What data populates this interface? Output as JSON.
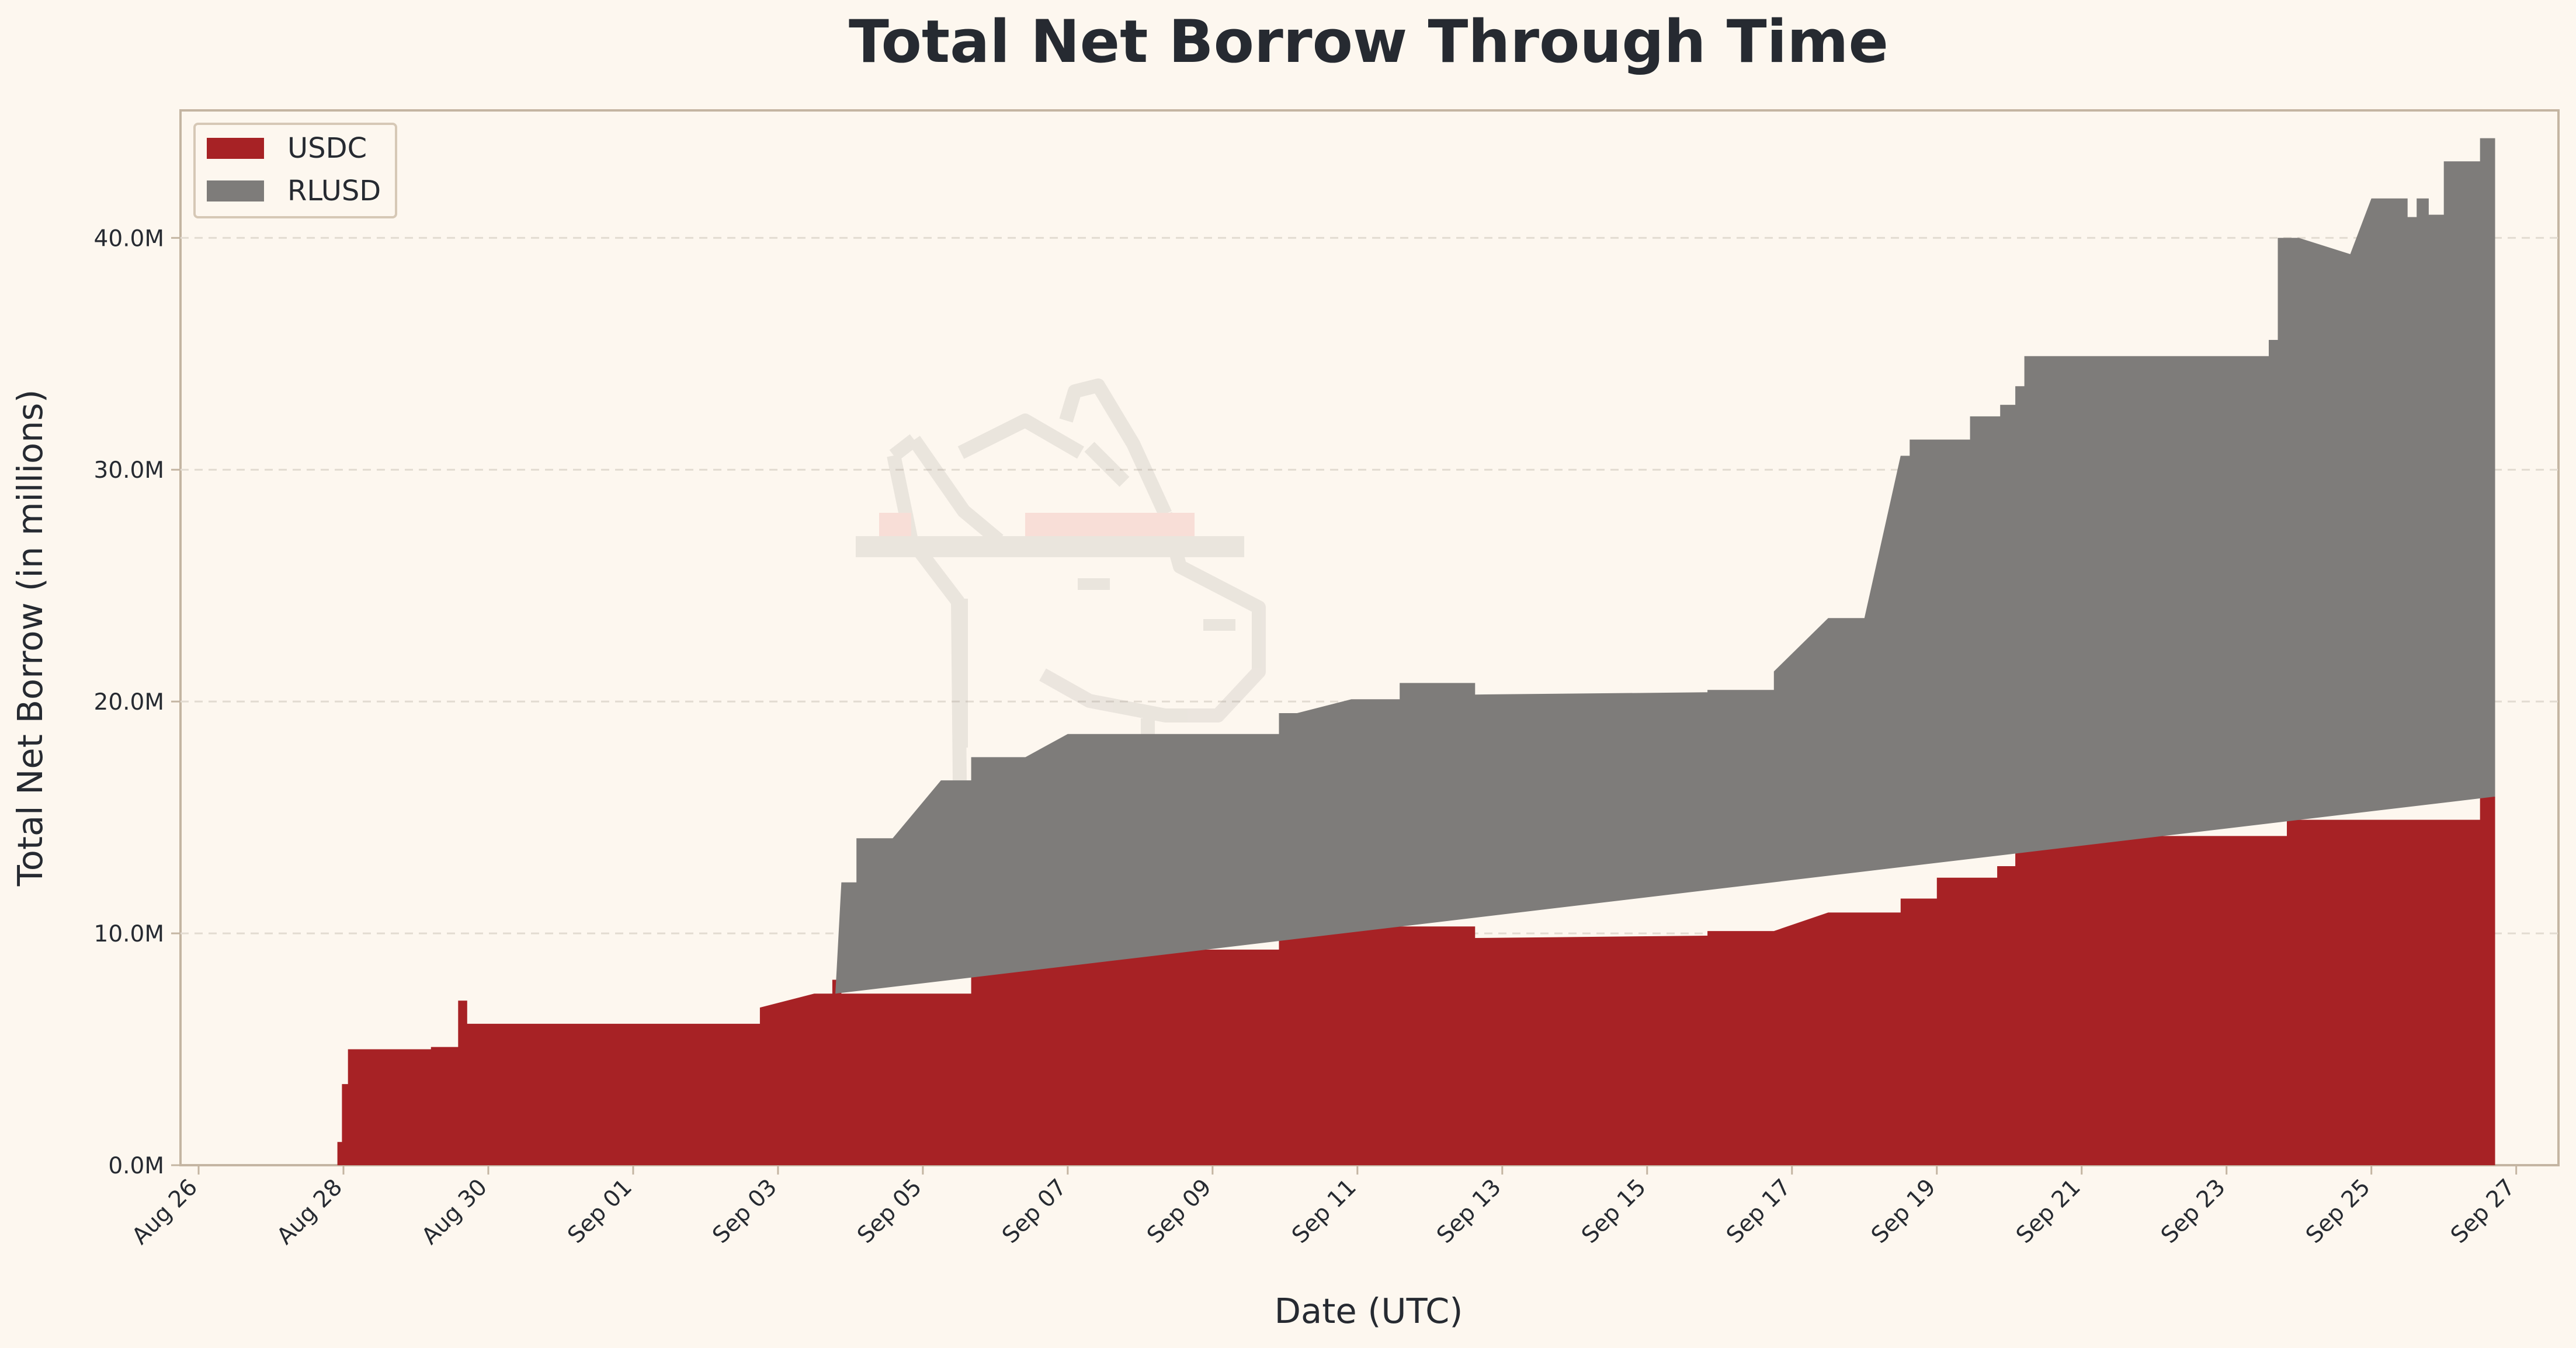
{
  "chart_data": {
    "type": "area",
    "stacked": true,
    "title": "Total Net Borrow Through Time",
    "xlabel": "Date (UTC)",
    "ylabel": "Total Net Borrow (in millions)",
    "ylim": [
      0,
      45.5
    ],
    "yticks": [
      0,
      10,
      20,
      30,
      40
    ],
    "ytick_labels": [
      "0.0M",
      "10.0M",
      "20.0M",
      "30.0M",
      "40.0M"
    ],
    "xlim": [
      "2025-08-25 18:00",
      "2025-09-27 14:00"
    ],
    "xticks": [
      "2025-08-26",
      "2025-08-28",
      "2025-08-30",
      "2025-09-01",
      "2025-09-03",
      "2025-09-05",
      "2025-09-07",
      "2025-09-09",
      "2025-09-11",
      "2025-09-13",
      "2025-09-15",
      "2025-09-17",
      "2025-09-19",
      "2025-09-21",
      "2025-09-23",
      "2025-09-25",
      "2025-09-27"
    ],
    "xtick_labels": [
      "Aug 26",
      "Aug 28",
      "Aug 30",
      "Sep 01",
      "Sep 03",
      "Sep 05",
      "Sep 07",
      "Sep 09",
      "Sep 11",
      "Sep 13",
      "Sep 15",
      "Sep 17",
      "Sep 19",
      "Sep 21",
      "Sep 23",
      "Sep 25",
      "Sep 27"
    ],
    "grid": "horizontal dashed",
    "legend_position": "top-left",
    "colors": {
      "USDC": "#a72225",
      "RLUSD": "#7e7c7a",
      "background": "#fdf7ef",
      "frame": "#c4b5a2",
      "text": "#262a31"
    },
    "series": [
      {
        "name": "USDC",
        "points": [
          [
            "2025-08-27 22:00",
            0
          ],
          [
            "2025-08-27 22:00",
            1.0
          ],
          [
            "2025-08-27 23:30",
            1.0
          ],
          [
            "2025-08-27 23:30",
            3.5
          ],
          [
            "2025-08-28 01:30",
            3.5
          ],
          [
            "2025-08-28 01:30",
            5.0
          ],
          [
            "2025-08-29 05:00",
            5.0
          ],
          [
            "2025-08-29 05:00",
            5.1
          ],
          [
            "2025-08-29 14:00",
            5.1
          ],
          [
            "2025-08-29 14:00",
            7.1
          ],
          [
            "2025-08-29 17:00",
            7.1
          ],
          [
            "2025-08-29 17:00",
            6.1
          ],
          [
            "2025-09-02 18:00",
            6.1
          ],
          [
            "2025-09-02 18:00",
            6.8
          ],
          [
            "2025-09-03 12:00",
            7.4
          ],
          [
            "2025-09-03 18:00",
            7.4
          ],
          [
            "2025-09-03 18:00",
            8.0
          ],
          [
            "2025-09-03 21:00",
            8.0
          ],
          [
            "2025-09-03 21:00",
            7.4
          ],
          [
            "2025-09-05 16:00",
            7.4
          ],
          [
            "2025-09-05 16:00",
            8.4
          ],
          [
            "2025-09-06 10:00",
            8.4
          ],
          [
            "2025-09-07 00:00",
            9.3
          ],
          [
            "2025-09-09 22:00",
            9.3
          ],
          [
            "2025-09-09 22:00",
            10.3
          ],
          [
            "2025-09-12 15:00",
            10.3
          ],
          [
            "2025-09-12 15:00",
            9.8
          ],
          [
            "2025-09-15 20:00",
            9.9
          ],
          [
            "2025-09-15 20:00",
            10.1
          ],
          [
            "2025-09-16 18:00",
            10.1
          ],
          [
            "2025-09-17 12:00",
            10.9
          ],
          [
            "2025-09-18 12:00",
            10.9
          ],
          [
            "2025-09-18 12:00",
            11.5
          ],
          [
            "2025-09-19 00:00",
            11.5
          ],
          [
            "2025-09-19 00:00",
            12.4
          ],
          [
            "2025-09-19 20:00",
            12.4
          ],
          [
            "2025-09-19 20:00",
            12.9
          ],
          [
            "2025-09-20 02:00",
            12.9
          ],
          [
            "2025-09-20 02:00",
            14.2
          ],
          [
            "2025-09-23 20:00",
            14.2
          ],
          [
            "2025-09-23 20:00",
            14.9
          ],
          [
            "2025-09-26 12:00",
            14.9
          ],
          [
            "2025-09-26 12:00",
            15.9
          ],
          [
            "2025-09-26 17:00",
            15.9
          ],
          [
            "2025-09-26 17:00",
            0
          ]
        ]
      },
      {
        "name": "RLUSD",
        "points": [
          [
            "2025-09-03 19:00",
            7.4
          ],
          [
            "2025-09-03 21:00",
            12.2
          ],
          [
            "2025-09-04 02:00",
            12.2
          ],
          [
            "2025-09-04 02:00",
            14.1
          ],
          [
            "2025-09-04 14:00",
            14.1
          ],
          [
            "2025-09-05 06:00",
            16.6
          ],
          [
            "2025-09-05 16:00",
            16.6
          ],
          [
            "2025-09-05 16:00",
            17.6
          ],
          [
            "2025-09-06 10:00",
            17.6
          ],
          [
            "2025-09-07 00:00",
            18.6
          ],
          [
            "2025-09-09 22:00",
            18.6
          ],
          [
            "2025-09-09 22:00",
            19.5
          ],
          [
            "2025-09-10 04:00",
            19.5
          ],
          [
            "2025-09-10 22:00",
            20.1
          ],
          [
            "2025-09-11 14:00",
            20.1
          ],
          [
            "2025-09-11 14:00",
            20.8
          ],
          [
            "2025-09-12 15:00",
            20.8
          ],
          [
            "2025-09-12 15:00",
            20.3
          ],
          [
            "2025-09-15 20:00",
            20.4
          ],
          [
            "2025-09-15 20:00",
            20.5
          ],
          [
            "2025-09-16 18:00",
            20.5
          ],
          [
            "2025-09-16 18:00",
            21.3
          ],
          [
            "2025-09-17 12:00",
            23.6
          ],
          [
            "2025-09-18 00:00",
            23.6
          ],
          [
            "2025-09-18 12:00",
            30.6
          ],
          [
            "2025-09-18 15:00",
            30.6
          ],
          [
            "2025-09-18 15:00",
            31.3
          ],
          [
            "2025-09-19 11:00",
            31.3
          ],
          [
            "2025-09-19 11:00",
            32.3
          ],
          [
            "2025-09-19 21:00",
            32.3
          ],
          [
            "2025-09-19 21:00",
            32.8
          ],
          [
            "2025-09-20 02:00",
            32.8
          ],
          [
            "2025-09-20 02:00",
            33.6
          ],
          [
            "2025-09-20 05:00",
            33.6
          ],
          [
            "2025-09-20 05:00",
            34.9
          ],
          [
            "2025-09-23 14:00",
            34.9
          ],
          [
            "2025-09-23 14:00",
            35.6
          ],
          [
            "2025-09-23 17:00",
            35.6
          ],
          [
            "2025-09-23 17:00",
            40.0
          ],
          [
            "2025-09-24 00:00",
            40.0
          ],
          [
            "2025-09-24 17:00",
            39.3
          ],
          [
            "2025-09-25 00:00",
            41.7
          ],
          [
            "2025-09-25 12:00",
            41.7
          ],
          [
            "2025-09-25 12:00",
            40.9
          ],
          [
            "2025-09-25 15:00",
            40.9
          ],
          [
            "2025-09-25 15:00",
            41.7
          ],
          [
            "2025-09-25 19:00",
            41.7
          ],
          [
            "2025-09-25 19:00",
            41.0
          ],
          [
            "2025-09-26 00:00",
            41.0
          ],
          [
            "2025-09-26 00:00",
            43.3
          ],
          [
            "2025-09-26 12:00",
            43.3
          ],
          [
            "2025-09-26 12:00",
            44.3
          ],
          [
            "2025-09-26 17:00",
            44.3
          ],
          [
            "2025-09-26 17:00",
            15.9
          ]
        ]
      }
    ]
  }
}
